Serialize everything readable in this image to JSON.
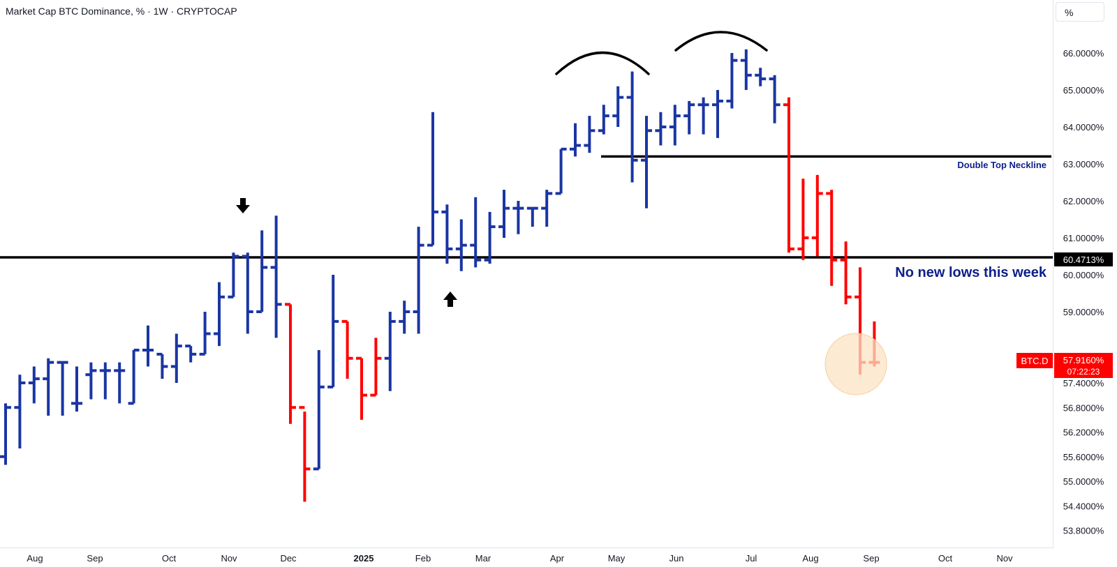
{
  "header": {
    "title": "Market Cap BTC Dominance, % · 1W · CRYPTOCAP",
    "unit_button": "%"
  },
  "colors": {
    "up_bar": "#1a35a3",
    "down_bar": "#ff0000",
    "annotation_text": "#0d1f8a",
    "line": "#000000",
    "highlight_circle": "#fce3c4",
    "price_tag_bg": "#ff0000",
    "level_tag_bg": "#000000"
  },
  "chart_data": {
    "type": "ohlc",
    "timeframe": "1W",
    "title": "Market Cap BTC Dominance, % · 1W · CRYPTOCAP",
    "symbol": "BTC.D",
    "y_axis_scale": "mixed: linear above 59%, compressed below",
    "y_ticks": [
      "66.0000%",
      "65.0000%",
      "64.0000%",
      "63.0000%",
      "62.0000%",
      "61.0000%",
      "60.0000%",
      "59.0000%",
      "57.4000%",
      "56.8000%",
      "56.2000%",
      "55.6000%",
      "55.0000%",
      "54.4000%",
      "53.8000%"
    ],
    "x_ticks": [
      "Aug",
      "Sep",
      "Oct",
      "Nov",
      "Dec",
      "2025",
      "Feb",
      "Mar",
      "Apr",
      "May",
      "Jun",
      "Jul",
      "Aug",
      "Sep",
      "Oct",
      "Nov"
    ],
    "bars": [
      {
        "o": 55.6,
        "h": 56.9,
        "l": 55.4,
        "c": 56.8,
        "dir": "up"
      },
      {
        "o": 56.8,
        "h": 57.6,
        "l": 55.8,
        "c": 57.4,
        "dir": "up"
      },
      {
        "o": 57.4,
        "h": 57.8,
        "l": 56.9,
        "c": 57.5,
        "dir": "up"
      },
      {
        "o": 57.5,
        "h": 58.0,
        "l": 56.6,
        "c": 57.9,
        "dir": "up"
      },
      {
        "o": 57.9,
        "h": 57.9,
        "l": 56.6,
        "c": 57.9,
        "dir": "up"
      },
      {
        "o": 56.9,
        "h": 57.8,
        "l": 56.7,
        "c": 56.9,
        "dir": "up"
      },
      {
        "o": 57.6,
        "h": 57.9,
        "l": 57.0,
        "c": 57.7,
        "dir": "up"
      },
      {
        "o": 57.7,
        "h": 57.9,
        "l": 57.0,
        "c": 57.7,
        "dir": "up"
      },
      {
        "o": 57.7,
        "h": 57.9,
        "l": 56.9,
        "c": 57.7,
        "dir": "up"
      },
      {
        "o": 56.9,
        "h": 58.2,
        "l": 56.9,
        "c": 58.2,
        "dir": "up"
      },
      {
        "o": 58.2,
        "h": 58.8,
        "l": 57.8,
        "c": 58.2,
        "dir": "up"
      },
      {
        "o": 58.1,
        "h": 58.1,
        "l": 57.5,
        "c": 57.8,
        "dir": "up"
      },
      {
        "o": 57.8,
        "h": 58.6,
        "l": 57.4,
        "c": 58.3,
        "dir": "up"
      },
      {
        "o": 58.3,
        "h": 58.3,
        "l": 57.9,
        "c": 58.1,
        "dir": "up"
      },
      {
        "o": 58.1,
        "h": 59.0,
        "l": 58.1,
        "c": 58.6,
        "dir": "up"
      },
      {
        "o": 58.6,
        "h": 59.8,
        "l": 58.3,
        "c": 59.4,
        "dir": "up"
      },
      {
        "o": 59.4,
        "h": 60.6,
        "l": 59.4,
        "c": 60.5,
        "dir": "up"
      },
      {
        "o": 60.5,
        "h": 60.6,
        "l": 58.6,
        "c": 59.0,
        "dir": "up"
      },
      {
        "o": 59.0,
        "h": 61.2,
        "l": 59.0,
        "c": 60.2,
        "dir": "up"
      },
      {
        "o": 60.2,
        "h": 61.6,
        "l": 58.5,
        "c": 59.2,
        "dir": "up"
      },
      {
        "o": 59.2,
        "h": 59.2,
        "l": 56.4,
        "c": 56.8,
        "dir": "down"
      },
      {
        "o": 56.8,
        "h": 56.7,
        "l": 54.5,
        "c": 55.3,
        "dir": "down"
      },
      {
        "o": 55.3,
        "h": 58.2,
        "l": 55.3,
        "c": 57.3,
        "dir": "up"
      },
      {
        "o": 57.3,
        "h": 60.0,
        "l": 57.3,
        "c": 58.9,
        "dir": "up"
      },
      {
        "o": 58.9,
        "h": 58.9,
        "l": 57.5,
        "c": 58.0,
        "dir": "down"
      },
      {
        "o": 58.0,
        "h": 58.0,
        "l": 56.5,
        "c": 57.1,
        "dir": "down"
      },
      {
        "o": 57.1,
        "h": 58.5,
        "l": 57.1,
        "c": 58.0,
        "dir": "down"
      },
      {
        "o": 58.0,
        "h": 59.0,
        "l": 57.2,
        "c": 58.9,
        "dir": "up"
      },
      {
        "o": 58.9,
        "h": 59.3,
        "l": 58.6,
        "c": 59.0,
        "dir": "up"
      },
      {
        "o": 59.0,
        "h": 61.3,
        "l": 58.6,
        "c": 60.8,
        "dir": "up"
      },
      {
        "o": 60.8,
        "h": 64.4,
        "l": 60.8,
        "c": 61.7,
        "dir": "up"
      },
      {
        "o": 61.7,
        "h": 61.9,
        "l": 60.3,
        "c": 60.7,
        "dir": "up"
      },
      {
        "o": 60.7,
        "h": 61.5,
        "l": 60.1,
        "c": 60.8,
        "dir": "up"
      },
      {
        "o": 60.8,
        "h": 62.1,
        "l": 60.2,
        "c": 60.4,
        "dir": "up"
      },
      {
        "o": 60.4,
        "h": 61.7,
        "l": 60.3,
        "c": 61.3,
        "dir": "up"
      },
      {
        "o": 61.3,
        "h": 62.3,
        "l": 61.0,
        "c": 61.8,
        "dir": "up"
      },
      {
        "o": 61.8,
        "h": 62.0,
        "l": 61.1,
        "c": 61.8,
        "dir": "up"
      },
      {
        "o": 61.8,
        "h": 61.8,
        "l": 61.3,
        "c": 61.8,
        "dir": "up"
      },
      {
        "o": 61.8,
        "h": 62.3,
        "l": 61.3,
        "c": 62.2,
        "dir": "up"
      },
      {
        "o": 62.2,
        "h": 63.4,
        "l": 62.2,
        "c": 63.4,
        "dir": "up"
      },
      {
        "o": 63.4,
        "h": 64.1,
        "l": 63.2,
        "c": 63.5,
        "dir": "up"
      },
      {
        "o": 63.5,
        "h": 64.3,
        "l": 63.3,
        "c": 63.9,
        "dir": "up"
      },
      {
        "o": 63.9,
        "h": 64.6,
        "l": 63.8,
        "c": 64.3,
        "dir": "up"
      },
      {
        "o": 64.3,
        "h": 65.1,
        "l": 64.0,
        "c": 64.8,
        "dir": "up"
      },
      {
        "o": 64.8,
        "h": 65.5,
        "l": 62.5,
        "c": 63.1,
        "dir": "up"
      },
      {
        "o": 63.1,
        "h": 64.3,
        "l": 61.8,
        "c": 63.9,
        "dir": "up"
      },
      {
        "o": 63.9,
        "h": 64.4,
        "l": 63.5,
        "c": 64.0,
        "dir": "up"
      },
      {
        "o": 64.0,
        "h": 64.6,
        "l": 63.5,
        "c": 64.3,
        "dir": "up"
      },
      {
        "o": 64.3,
        "h": 64.7,
        "l": 63.8,
        "c": 64.6,
        "dir": "up"
      },
      {
        "o": 64.6,
        "h": 64.8,
        "l": 63.8,
        "c": 64.6,
        "dir": "up"
      },
      {
        "o": 64.6,
        "h": 65.0,
        "l": 63.7,
        "c": 64.7,
        "dir": "up"
      },
      {
        "o": 64.7,
        "h": 66.0,
        "l": 64.5,
        "c": 65.8,
        "dir": "up"
      },
      {
        "o": 65.8,
        "h": 66.1,
        "l": 65.0,
        "c": 65.4,
        "dir": "up"
      },
      {
        "o": 65.4,
        "h": 65.6,
        "l": 65.1,
        "c": 65.3,
        "dir": "up"
      },
      {
        "o": 65.3,
        "h": 65.4,
        "l": 64.1,
        "c": 64.6,
        "dir": "up"
      },
      {
        "o": 64.6,
        "h": 64.8,
        "l": 60.6,
        "c": 60.7,
        "dir": "down"
      },
      {
        "o": 60.7,
        "h": 62.6,
        "l": 60.4,
        "c": 61.0,
        "dir": "down"
      },
      {
        "o": 61.0,
        "h": 62.7,
        "l": 60.5,
        "c": 62.2,
        "dir": "down"
      },
      {
        "o": 62.2,
        "h": 62.3,
        "l": 59.7,
        "c": 60.4,
        "dir": "down"
      },
      {
        "o": 60.4,
        "h": 60.9,
        "l": 59.2,
        "c": 59.4,
        "dir": "down"
      },
      {
        "o": 59.4,
        "h": 60.2,
        "l": 57.6,
        "c": 57.9,
        "dir": "down"
      },
      {
        "o": 57.9,
        "h": 58.9,
        "l": 57.8,
        "c": 57.9,
        "dir": "down"
      }
    ],
    "horizontal_lines": [
      {
        "value": 60.4713,
        "label": "60.4713%"
      },
      {
        "value": 63.2,
        "label": "Double Top Neckline"
      }
    ],
    "last_price": {
      "symbol": "BTC.D",
      "value": "57.9160%",
      "countdown": "07:22:23"
    },
    "annotations": [
      "Double Top Neckline",
      "No new lows this week"
    ]
  }
}
